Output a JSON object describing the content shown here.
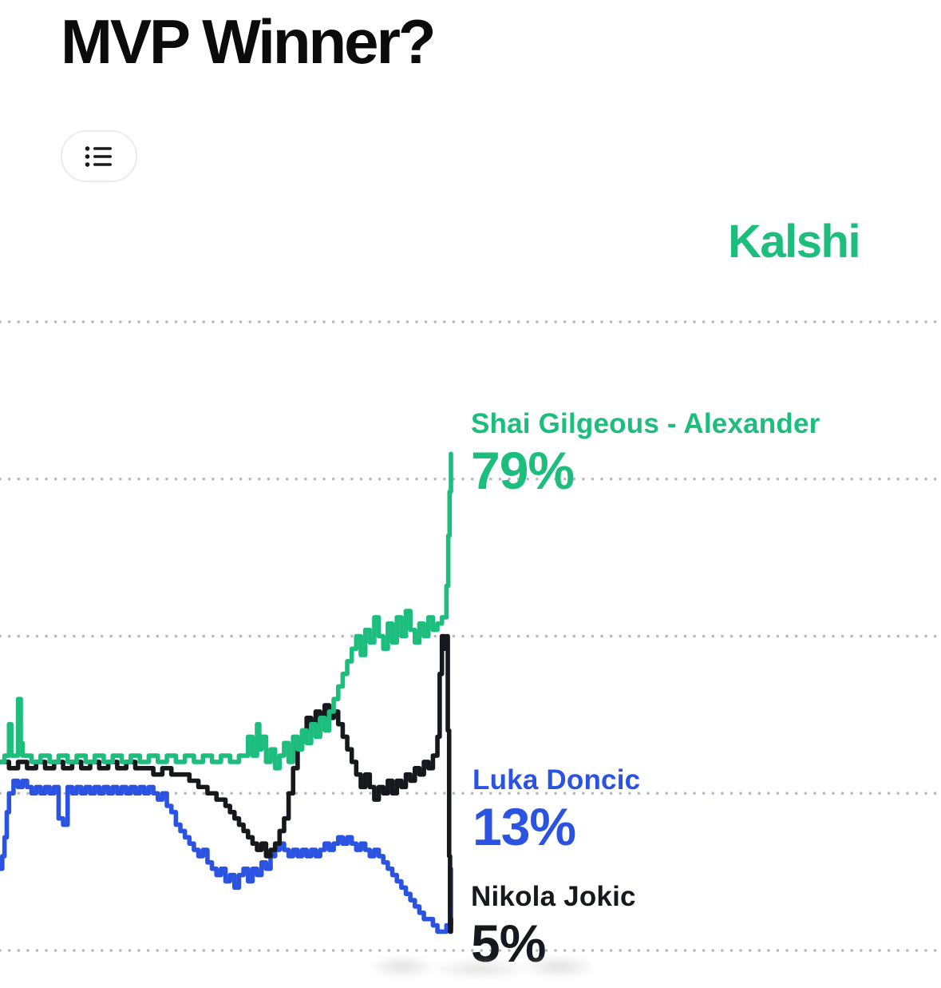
{
  "page": {
    "title": "MVP Winner?"
  },
  "controls": {
    "list_view_button": {
      "icon": "list-icon"
    }
  },
  "brand": {
    "name": "Kalshi"
  },
  "colors": {
    "green": "#1dbd7e",
    "blue": "#2b53e2",
    "black": "#16181d",
    "grid": "#b4b7bd",
    "title": "#0b0b0c"
  },
  "chart_data": {
    "type": "line",
    "title": "MVP Winner?",
    "ylim": [
      0,
      100
    ],
    "gridlines_percent": [
      0,
      25,
      50,
      75,
      100
    ],
    "grid": "dotted horizontal lines, no axis labels shown",
    "legend_position": "inline labels at right end of lines",
    "interpolation": "step",
    "series": [
      {
        "name": "Shai Gilgeous - Alexander",
        "final_value": 79,
        "final_label": "79%",
        "color": "#1dbd7e",
        "points": [
          [
            0,
            30
          ],
          [
            1,
            31
          ],
          [
            2,
            36
          ],
          [
            2.5,
            31
          ],
          [
            3,
            31
          ],
          [
            4,
            40
          ],
          [
            4.6,
            33
          ],
          [
            5,
            31
          ],
          [
            7,
            30
          ],
          [
            9,
            31
          ],
          [
            11,
            30
          ],
          [
            13,
            31
          ],
          [
            15,
            30
          ],
          [
            17,
            31
          ],
          [
            19,
            30
          ],
          [
            21,
            31
          ],
          [
            23,
            30
          ],
          [
            25,
            31
          ],
          [
            27,
            30
          ],
          [
            29,
            31
          ],
          [
            31,
            30
          ],
          [
            33,
            31
          ],
          [
            35,
            30
          ],
          [
            37,
            31
          ],
          [
            39,
            30
          ],
          [
            41,
            31
          ],
          [
            43,
            30
          ],
          [
            45,
            31
          ],
          [
            47,
            30
          ],
          [
            49,
            31
          ],
          [
            51,
            30
          ],
          [
            53,
            31
          ],
          [
            55,
            34
          ],
          [
            56,
            31
          ],
          [
            57,
            36
          ],
          [
            57.5,
            32
          ],
          [
            58,
            34
          ],
          [
            59,
            30
          ],
          [
            60,
            32
          ],
          [
            61,
            29
          ],
          [
            62,
            31
          ],
          [
            63,
            33
          ],
          [
            64,
            30
          ],
          [
            65,
            34
          ],
          [
            66,
            32
          ],
          [
            67,
            35
          ],
          [
            68,
            33
          ],
          [
            69,
            36
          ],
          [
            70,
            34
          ],
          [
            71,
            37
          ],
          [
            72,
            35
          ],
          [
            73,
            38
          ],
          [
            74,
            40
          ],
          [
            75,
            42
          ],
          [
            76,
            44
          ],
          [
            77,
            46
          ],
          [
            78,
            48
          ],
          [
            79,
            50
          ],
          [
            80,
            47
          ],
          [
            81,
            51
          ],
          [
            82,
            49
          ],
          [
            83,
            53
          ],
          [
            84,
            50
          ],
          [
            85,
            48
          ],
          [
            86,
            52
          ],
          [
            87,
            49
          ],
          [
            88,
            53
          ],
          [
            89,
            50
          ],
          [
            90,
            54
          ],
          [
            91,
            51
          ],
          [
            92,
            49
          ],
          [
            93,
            52
          ],
          [
            94,
            50
          ],
          [
            95,
            53
          ],
          [
            96,
            51
          ],
          [
            97,
            52
          ],
          [
            98,
            53
          ],
          [
            99,
            58
          ],
          [
            99.4,
            66
          ],
          [
            99.7,
            73
          ],
          [
            100,
            79
          ]
        ]
      },
      {
        "name": "Luka Doncic",
        "final_value": 13,
        "final_label": "13%",
        "color": "#2b53e2",
        "points": [
          [
            0,
            13
          ],
          [
            0.5,
            15
          ],
          [
            1,
            18
          ],
          [
            1.5,
            22
          ],
          [
            2,
            25
          ],
          [
            3,
            27
          ],
          [
            4,
            26
          ],
          [
            5,
            27
          ],
          [
            6,
            26
          ],
          [
            7,
            25
          ],
          [
            8,
            26
          ],
          [
            9,
            25
          ],
          [
            10,
            26
          ],
          [
            11,
            25
          ],
          [
            12,
            26
          ],
          [
            13,
            21
          ],
          [
            14,
            20
          ],
          [
            15,
            26
          ],
          [
            16,
            25
          ],
          [
            17,
            26
          ],
          [
            18,
            25
          ],
          [
            19,
            26
          ],
          [
            20,
            25
          ],
          [
            21,
            26
          ],
          [
            22,
            25
          ],
          [
            23,
            26
          ],
          [
            24,
            25
          ],
          [
            25,
            26
          ],
          [
            26,
            25
          ],
          [
            27,
            26
          ],
          [
            28,
            25
          ],
          [
            29,
            26
          ],
          [
            30,
            25
          ],
          [
            31,
            26
          ],
          [
            32,
            25
          ],
          [
            33,
            26
          ],
          [
            34,
            25
          ],
          [
            35,
            24
          ],
          [
            36,
            25
          ],
          [
            37,
            23
          ],
          [
            38,
            22
          ],
          [
            39,
            20
          ],
          [
            40,
            19
          ],
          [
            41,
            18
          ],
          [
            42,
            17
          ],
          [
            43,
            16
          ],
          [
            44,
            15
          ],
          [
            45,
            16
          ],
          [
            46,
            14
          ],
          [
            47,
            13
          ],
          [
            48,
            12
          ],
          [
            49,
            13
          ],
          [
            50,
            11
          ],
          [
            51,
            12
          ],
          [
            52,
            10
          ],
          [
            53,
            12
          ],
          [
            54,
            13
          ],
          [
            55,
            11
          ],
          [
            56,
            13
          ],
          [
            57,
            12
          ],
          [
            58,
            14
          ],
          [
            59,
            13
          ],
          [
            60,
            15
          ],
          [
            61,
            16
          ],
          [
            62,
            17
          ],
          [
            63,
            16
          ],
          [
            64,
            15
          ],
          [
            65,
            16
          ],
          [
            66,
            15
          ],
          [
            67,
            16
          ],
          [
            68,
            15
          ],
          [
            69,
            16
          ],
          [
            70,
            15
          ],
          [
            71,
            16
          ],
          [
            72,
            17
          ],
          [
            73,
            16
          ],
          [
            74,
            17
          ],
          [
            75,
            18
          ],
          [
            76,
            17
          ],
          [
            77,
            18
          ],
          [
            78,
            17
          ],
          [
            79,
            16
          ],
          [
            80,
            17
          ],
          [
            81,
            16
          ],
          [
            82,
            15
          ],
          [
            83,
            16
          ],
          [
            84,
            15
          ],
          [
            85,
            14
          ],
          [
            86,
            13
          ],
          [
            87,
            12
          ],
          [
            88,
            11
          ],
          [
            89,
            10
          ],
          [
            90,
            9
          ],
          [
            91,
            8
          ],
          [
            92,
            7
          ],
          [
            93,
            6
          ],
          [
            94,
            5
          ],
          [
            95,
            5
          ],
          [
            96,
            4
          ],
          [
            97,
            3
          ],
          [
            98,
            3
          ],
          [
            99,
            4
          ],
          [
            100,
            13
          ]
        ]
      },
      {
        "name": "Nikola Jokic",
        "final_value": 5,
        "final_label": "5%",
        "color": "#16181d",
        "points": [
          [
            0,
            30
          ],
          [
            2,
            29
          ],
          [
            4,
            30
          ],
          [
            6,
            29
          ],
          [
            8,
            30
          ],
          [
            10,
            29
          ],
          [
            12,
            30
          ],
          [
            14,
            29
          ],
          [
            16,
            30
          ],
          [
            18,
            29
          ],
          [
            20,
            30
          ],
          [
            22,
            29
          ],
          [
            24,
            30
          ],
          [
            26,
            29
          ],
          [
            28,
            30
          ],
          [
            30,
            29
          ],
          [
            32,
            29
          ],
          [
            34,
            28
          ],
          [
            36,
            29
          ],
          [
            38,
            28
          ],
          [
            40,
            28
          ],
          [
            42,
            27
          ],
          [
            44,
            26
          ],
          [
            46,
            25
          ],
          [
            48,
            24
          ],
          [
            50,
            23
          ],
          [
            51,
            22
          ],
          [
            52,
            21
          ],
          [
            53,
            20
          ],
          [
            54,
            19
          ],
          [
            55,
            18
          ],
          [
            56,
            17
          ],
          [
            57,
            16
          ],
          [
            58,
            17
          ],
          [
            59,
            15
          ],
          [
            60,
            16
          ],
          [
            61,
            17
          ],
          [
            62,
            19
          ],
          [
            63,
            21
          ],
          [
            64,
            25
          ],
          [
            65,
            29
          ],
          [
            66,
            33
          ],
          [
            67,
            35
          ],
          [
            68,
            37
          ],
          [
            69,
            36
          ],
          [
            70,
            38
          ],
          [
            71,
            37
          ],
          [
            72,
            39
          ],
          [
            73,
            37
          ],
          [
            74,
            38
          ],
          [
            75,
            36
          ],
          [
            76,
            34
          ],
          [
            77,
            32
          ],
          [
            78,
            30
          ],
          [
            79,
            28
          ],
          [
            80,
            26
          ],
          [
            81,
            28
          ],
          [
            82,
            26
          ],
          [
            83,
            24
          ],
          [
            84,
            26
          ],
          [
            85,
            25
          ],
          [
            86,
            27
          ],
          [
            87,
            25
          ],
          [
            88,
            27
          ],
          [
            89,
            26
          ],
          [
            90,
            28
          ],
          [
            91,
            27
          ],
          [
            92,
            29
          ],
          [
            93,
            28
          ],
          [
            94,
            30
          ],
          [
            95,
            29
          ],
          [
            96,
            31
          ],
          [
            97,
            34
          ],
          [
            97.5,
            44
          ],
          [
            98,
            50
          ],
          [
            98.5,
            48
          ],
          [
            99,
            50
          ],
          [
            99.3,
            35
          ],
          [
            99.6,
            15
          ],
          [
            99.8,
            3
          ],
          [
            100,
            5
          ]
        ]
      }
    ]
  }
}
